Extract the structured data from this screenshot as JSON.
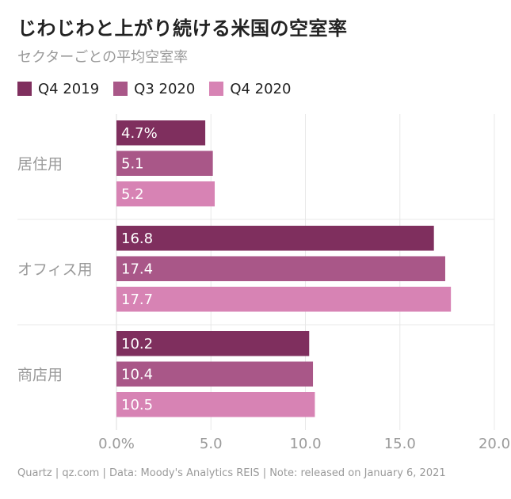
{
  "chart_data": {
    "type": "bar",
    "orientation": "horizontal",
    "title": "じわじわと上がり続ける米国の空室率",
    "subtitle": "セクターごとの平均空室率",
    "categories": [
      "居住用",
      "オフィス用",
      "商店用"
    ],
    "series": [
      {
        "name": "Q4 2019",
        "color": "#7f2f5e",
        "values": [
          4.7,
          16.8,
          10.2
        ],
        "labels": [
          "4.7%",
          "16.8",
          "10.2"
        ]
      },
      {
        "name": "Q3 2020",
        "color": "#a95788",
        "values": [
          5.1,
          17.4,
          10.4
        ],
        "labels": [
          "5.1",
          "17.4",
          "10.4"
        ]
      },
      {
        "name": "Q4 2020",
        "color": "#d783b4",
        "values": [
          5.2,
          17.7,
          10.5
        ],
        "labels": [
          "5.2",
          "17.7",
          "10.5"
        ]
      }
    ],
    "xlim": [
      0,
      20
    ],
    "xticks": [
      0,
      5,
      10,
      15,
      20
    ],
    "xtick_labels": [
      "0.0%",
      "5.0",
      "10.0",
      "15.0",
      "20.0"
    ],
    "legend": "top-left",
    "grid": true
  },
  "footer": "Quartz | qz.com | Data: Moody's Analytics REIS | Note: released on January 6, 2021"
}
